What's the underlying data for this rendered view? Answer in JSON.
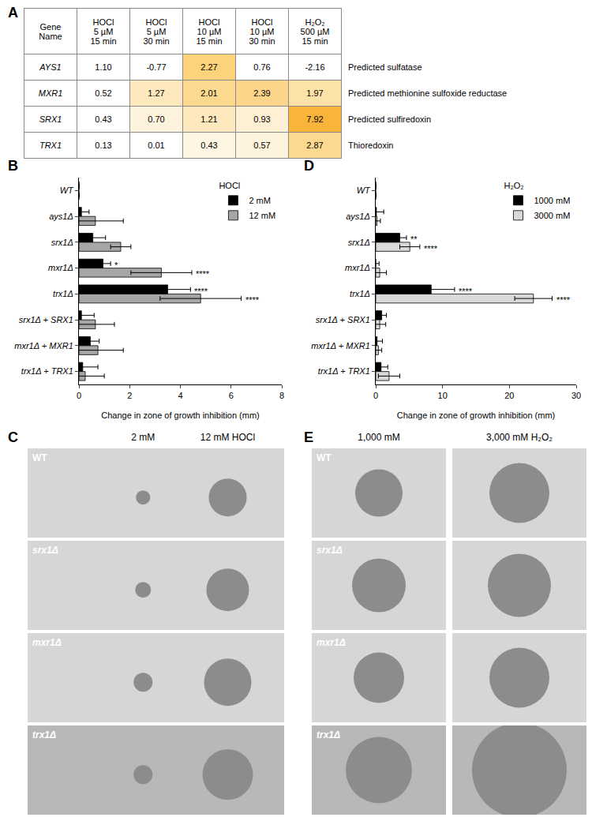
{
  "table": {
    "panel": "A",
    "header": [
      [
        "Gene",
        "Name"
      ],
      [
        "HOCl",
        "5 µM",
        "15 min"
      ],
      [
        "HOCl",
        "5 µM",
        "30 min"
      ],
      [
        "HOCl",
        "10 µM",
        "15 min"
      ],
      [
        "HOCl",
        "10 µM",
        "30 min"
      ],
      [
        "H₂O₂",
        "500 µM",
        "15 min"
      ]
    ],
    "rows": [
      {
        "gene": "AYS1",
        "values": [
          "1.10",
          "-0.77",
          "2.27",
          "0.76",
          "-2.16"
        ],
        "colors": [
          "#ffffff",
          "#ffffff",
          "#fcd27a",
          "#ffffff",
          "#ffffff"
        ],
        "description": "Predicted sulfatase"
      },
      {
        "gene": "MXR1",
        "values": [
          "0.52",
          "1.27",
          "2.01",
          "2.39",
          "1.97"
        ],
        "colors": [
          "#ffffff",
          "#fde9bd",
          "#fcd98f",
          "#fcd58a",
          "#fde2a8"
        ],
        "description": "Predicted methionine sulfoxide reductase"
      },
      {
        "gene": "SRX1",
        "values": [
          "0.43",
          "0.70",
          "1.21",
          "0.93",
          "7.92"
        ],
        "colors": [
          "#ffffff",
          "#fef3dc",
          "#fde9bd",
          "#fef0d4",
          "#f9b43c"
        ],
        "description": "Predicted sulfiredoxin"
      },
      {
        "gene": "TRX1",
        "values": [
          "0.13",
          "0.01",
          "0.43",
          "0.57",
          "2.87"
        ],
        "colors": [
          "#ffffff",
          "#ffffff",
          "#fef5e3",
          "#fef3dc",
          "#fcd98f"
        ],
        "description": "Thioredoxin"
      }
    ]
  },
  "chart_data": [
    {
      "panel": "B",
      "type": "bar",
      "orientation": "horizontal",
      "categories": [
        "WT",
        "ays1Δ",
        "srx1Δ",
        "mxr1Δ",
        "trx1Δ",
        "srx1Δ + SRX1",
        "mxr1Δ + MXR1",
        "trx1Δ + TRX1"
      ],
      "xlabel": "Change in zone of growth inhibition (mm)",
      "xlim": [
        0,
        8
      ],
      "xticks": [
        0,
        2,
        4,
        6,
        8
      ],
      "legend_title": "HOCl",
      "legend": "upper right",
      "series": [
        {
          "name": "2 mM",
          "color": "#000000",
          "values": [
            0,
            0.1,
            0.55,
            0.95,
            3.5,
            0.1,
            0.45,
            0.15
          ],
          "error": [
            null,
            0.3,
            0.5,
            0.3,
            0.9,
            0.5,
            0.35,
            0.6
          ],
          "significance": [
            null,
            null,
            null,
            "*",
            "****",
            null,
            null,
            null
          ]
        },
        {
          "name": "12 mM",
          "color": "#a6a6a6",
          "values": [
            0,
            0.65,
            1.65,
            3.25,
            4.8,
            0.65,
            0.75,
            0.25
          ],
          "error": [
            null,
            1.1,
            0.4,
            1.2,
            1.6,
            0.75,
            1.0,
            0.75
          ],
          "significance": [
            null,
            null,
            null,
            "****",
            "****",
            null,
            null,
            null
          ]
        }
      ]
    },
    {
      "panel": "D",
      "type": "bar",
      "orientation": "horizontal",
      "categories": [
        "WT",
        "ays1Δ",
        "srx1Δ",
        "mxr1Δ",
        "trx1Δ",
        "srx1Δ + SRX1",
        "mxr1Δ + MXR1",
        "trx1Δ + TRX1"
      ],
      "xlabel": "Change in zone of growth inhibition (mm)",
      "xlim": [
        0,
        30
      ],
      "xticks": [
        0,
        10,
        20,
        30
      ],
      "legend_title": "H₂O₂",
      "legend": "upper right",
      "series": [
        {
          "name": "1000 mM",
          "color": "#000000",
          "values": [
            0,
            0.1,
            3.6,
            0,
            8.3,
            0.9,
            0.2,
            0.8
          ],
          "error": [
            null,
            1.1,
            1.0,
            0.5,
            3.5,
            0.7,
            0.8,
            1.0
          ],
          "significance": [
            null,
            null,
            "**",
            null,
            "****",
            null,
            null,
            null
          ]
        },
        {
          "name": "3000 mM",
          "color": "#d9d9d9",
          "values": [
            0,
            0.2,
            5.1,
            0.6,
            23.6,
            0.6,
            0.4,
            2.0
          ],
          "error": [
            null,
            0.5,
            1.5,
            1.0,
            2.8,
            0.9,
            0.5,
            1.6
          ],
          "significance": [
            null,
            null,
            "****",
            null,
            "****",
            null,
            null,
            null
          ]
        }
      ]
    }
  ],
  "images": [
    {
      "panel": "C",
      "columns": [
        "2 mM",
        "12 mM HOCl"
      ],
      "rows": [
        "WT",
        "srx1Δ",
        "mxr1Δ",
        "trx1Δ"
      ]
    },
    {
      "panel": "E",
      "columns": [
        "1,000 mM",
        "3,000 mM H₂O₂"
      ],
      "rows": [
        "WT",
        "srx1Δ",
        "mxr1Δ",
        "trx1Δ"
      ]
    }
  ]
}
